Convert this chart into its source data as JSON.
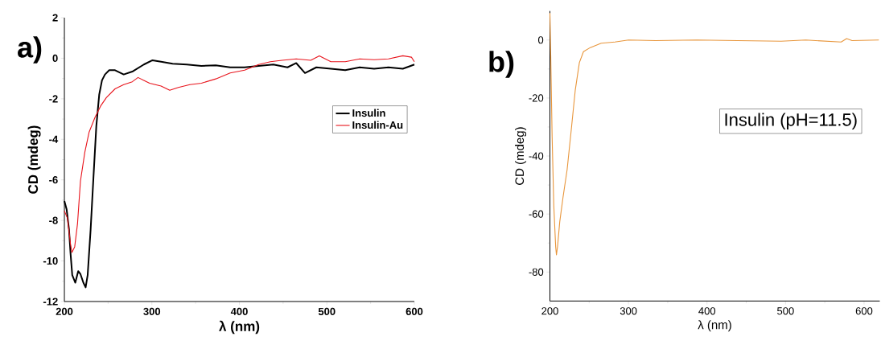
{
  "chart_data": [
    {
      "type": "line",
      "xlabel": "λ (nm)",
      "ylabel": "CD (mdeg)",
      "xlim": [
        200,
        600
      ],
      "ylim": [
        -12,
        2
      ],
      "xticks": [
        200,
        300,
        400,
        500,
        600
      ],
      "yticks": [
        -12,
        -10,
        -8,
        -6,
        -4,
        -2,
        0,
        2
      ],
      "legend": "right",
      "marker": "none",
      "line_style": "solid",
      "grid": false,
      "annotations": [
        "a)"
      ],
      "series": [
        {
          "name": "Insulin",
          "color": "#000000",
          "x": [
            200,
            202.6,
            205.3,
            207,
            209,
            212.5,
            215.8,
            218.4,
            221.7,
            224.3,
            226.6,
            230,
            233.2,
            236.5,
            239.8,
            243,
            246.4,
            251.3,
            257.9,
            267.8,
            277.6,
            290.8,
            300.7,
            310.5,
            323.7,
            340,
            356.6,
            373,
            389.5,
            406,
            422,
            438.8,
            455,
            465,
            475,
            488,
            504.6,
            521,
            537.5,
            554,
            570.4,
            586.8,
            600
          ],
          "values": [
            -7.04,
            -7.46,
            -8.45,
            -9.6,
            -10.7,
            -11.07,
            -10.5,
            -10.65,
            -11.07,
            -11.3,
            -10.7,
            -8.45,
            -5.9,
            -3.35,
            -1.8,
            -1.09,
            -0.8,
            -0.59,
            -0.59,
            -0.8,
            -0.66,
            -0.31,
            -0.1,
            -0.17,
            -0.27,
            -0.31,
            -0.38,
            -0.35,
            -0.45,
            -0.45,
            -0.38,
            -0.31,
            -0.45,
            -0.24,
            -0.73,
            -0.45,
            -0.52,
            -0.59,
            -0.45,
            -0.52,
            -0.45,
            -0.52,
            -0.31
          ]
        },
        {
          "name": "Insulin-Au",
          "color": "#e8141c",
          "x": [
            200,
            203.6,
            207,
            208.6,
            211.8,
            215,
            218.4,
            223.4,
            228.3,
            234.9,
            241.4,
            248,
            257.9,
            267.8,
            277.6,
            284.2,
            290.8,
            297.4,
            310.5,
            320.4,
            330.3,
            343.4,
            356.6,
            373,
            389.5,
            406,
            422,
            435.5,
            448.7,
            465,
            481.6,
            491.4,
            504.6,
            521,
            537.5,
            554,
            570.4,
            586.8,
            596.7,
            600
          ],
          "values": [
            -7.53,
            -7.9,
            -9.16,
            -9.58,
            -9.3,
            -8.17,
            -6.05,
            -4.63,
            -3.64,
            -2.93,
            -2.36,
            -1.94,
            -1.51,
            -1.3,
            -1.16,
            -0.95,
            -1.09,
            -1.23,
            -1.37,
            -1.58,
            -1.44,
            -1.3,
            -1.23,
            -1.02,
            -0.73,
            -0.59,
            -0.31,
            -0.17,
            -0.1,
            -0.03,
            -0.1,
            0.12,
            -0.17,
            -0.17,
            -0.03,
            -0.07,
            -0.03,
            0.12,
            0.05,
            -0.17
          ]
        }
      ]
    },
    {
      "type": "line",
      "xlabel": "λ (nm)",
      "ylabel": "CD (mdeg)",
      "xlim": [
        200,
        620
      ],
      "ylim": [
        -90,
        10
      ],
      "xticks": [
        200,
        300,
        400,
        500,
        600
      ],
      "yticks": [
        -80,
        -60,
        -40,
        -20,
        0
      ],
      "marker": "none",
      "line_style": "solid",
      "grid": false,
      "annotations": [
        "b)",
        "Insulin (pH=11.5)"
      ],
      "series": [
        {
          "color": "#e8963c",
          "x": [
            200,
            201,
            202.8,
            204.9,
            207.3,
            208.3,
            209.7,
            212.5,
            216.7,
            221.9,
            227,
            232.3,
            237.5,
            242.7,
            251.4,
            265.3,
            282.6,
            300,
            334.7,
            386.8,
            438.9,
            494.4,
            525.7,
            570.8,
            577.8,
            584.7,
            618.8
          ],
          "values": [
            9.3,
            -4.9,
            -33.3,
            -57,
            -71.2,
            -74.1,
            -71.2,
            -62.7,
            -54.2,
            -44.7,
            -31.4,
            -17.2,
            -7.8,
            -4,
            -2.6,
            -1.1,
            -0.7,
            0,
            -0.2,
            0,
            -0.2,
            -0.4,
            0,
            -0.7,
            0.5,
            -0.2,
            0
          ]
        }
      ]
    }
  ]
}
